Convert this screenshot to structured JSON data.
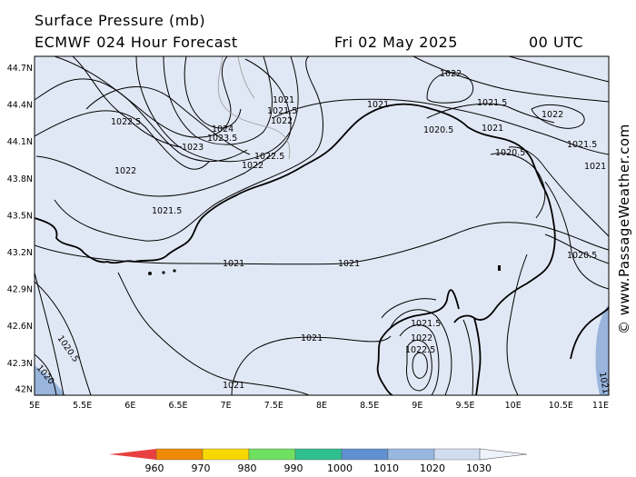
{
  "header": {
    "line1": "Surface Pressure (mb)",
    "line2": "ECMWF 024 Hour Forecast",
    "date": "Fri 02 May 2025",
    "time": "00 UTC"
  },
  "credit": "© www.PassageWeather.com",
  "axes": {
    "lat_labels": [
      "44.7N",
      "44.4N",
      "44.1N",
      "43.8N",
      "43.5N",
      "43.2N",
      "42.9N",
      "42.6N",
      "42.3N",
      "42N"
    ],
    "lon_labels": [
      "5E",
      "5.5E",
      "6E",
      "6.5E",
      "7E",
      "7.5E",
      "8E",
      "8.5E",
      "9E",
      "9.5E",
      "10E",
      "10.5E",
      "11E"
    ]
  },
  "isobar_labels": [
    "1022.5",
    "1022",
    "1021.5",
    "1021",
    "1024",
    "1023.5",
    "1023",
    "1022.5",
    "1022",
    "1021",
    "1021.5",
    "1022",
    "1021",
    "1021",
    "1020.5",
    "1022",
    "1021.5",
    "1022",
    "1021",
    "1021.5",
    "1021",
    "1020.5",
    "1020.5",
    "1021",
    "1021",
    "1021.5",
    "1022",
    "1022.5",
    "1020.5",
    "1020",
    "1021",
    "1020"
  ],
  "legend": {
    "ticks": [
      "960",
      "970",
      "980",
      "990",
      "1000",
      "1010",
      "1020",
      "1030"
    ],
    "colors": [
      "#e84040",
      "#f08a00",
      "#f8d800",
      "#70e060",
      "#30c090",
      "#6090d0",
      "#98b8e0",
      "#d0dcf0"
    ]
  },
  "colors": {
    "sea": "#e1e8f5",
    "low_pressure": "#99b5dc",
    "land_line": "#000000"
  }
}
